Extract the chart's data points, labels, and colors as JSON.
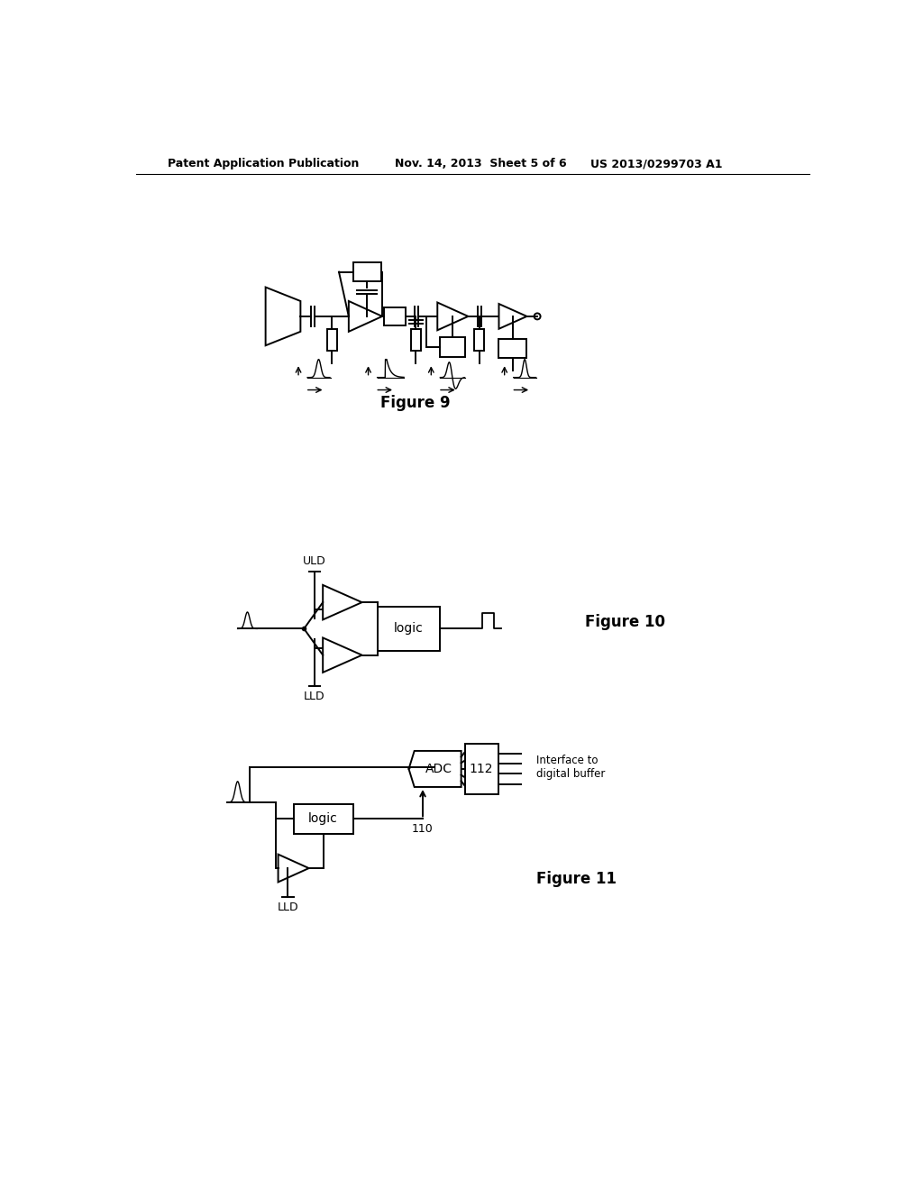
{
  "bg_color": "#ffffff",
  "line_color": "#000000",
  "header_left": "Patent Application Publication",
  "header_mid": "Nov. 14, 2013  Sheet 5 of 6",
  "header_right": "US 2013/0299703 A1",
  "fig9_label": "Figure 9",
  "fig10_label": "Figure 10",
  "fig11_label": "Figure 11",
  "fig10_uld": "ULD",
  "fig10_lld": "LLD",
  "fig10_logic": "logic",
  "fig11_lld": "LLD",
  "fig11_logic": "logic",
  "fig11_adc": "ADC",
  "fig11_112": "112",
  "fig11_110": "110",
  "fig11_interface": "Interface to\ndigital buffer"
}
